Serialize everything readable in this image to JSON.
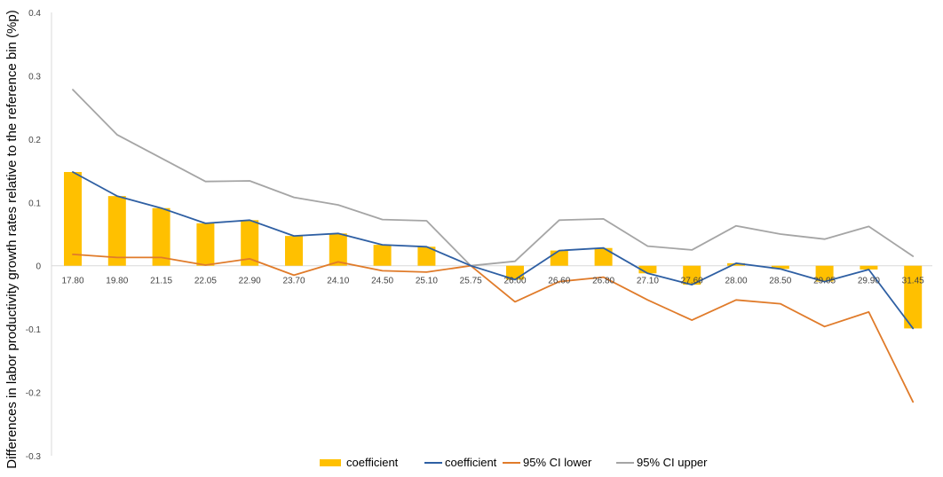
{
  "chart_data": {
    "type": "bar",
    "ylabel": "Differences in labor productivity growth rates relative to the reference bin (%p)",
    "xlabel": "",
    "title": "",
    "ylim": [
      -0.3,
      0.4
    ],
    "yticks": [
      0.4,
      0.3,
      0.2,
      0.1,
      0,
      -0.1,
      -0.2,
      -0.3
    ],
    "ytick_labels": [
      "0.4",
      "0.3",
      "0.2",
      "0.1",
      "0",
      "-0.1",
      "-0.2",
      "-0.3"
    ],
    "grid": false,
    "legend_position": "bottom",
    "categories": [
      "17.80",
      "19.80",
      "21.15",
      "22.05",
      "22.90",
      "23.70",
      "24.10",
      "24.50",
      "25.10",
      "25.75",
      "26.00",
      "26.60",
      "26.80",
      "27.10",
      "27.60",
      "28.00",
      "28.50",
      "29.05",
      "29.90",
      "31.45"
    ],
    "series": [
      {
        "name": "coefficient",
        "type": "bar",
        "color": "#FFC000",
        "values": [
          0.148,
          0.11,
          0.091,
          0.067,
          0.072,
          0.047,
          0.051,
          0.033,
          0.03,
          0.0,
          -0.022,
          0.024,
          0.028,
          -0.012,
          -0.03,
          0.004,
          -0.005,
          -0.025,
          -0.006,
          -0.099
        ]
      },
      {
        "name": "coefficient",
        "type": "line",
        "color": "#2E5FA3",
        "values": [
          0.148,
          0.11,
          0.091,
          0.067,
          0.072,
          0.047,
          0.051,
          0.033,
          0.03,
          0.0,
          -0.022,
          0.024,
          0.028,
          -0.012,
          -0.03,
          0.004,
          -0.005,
          -0.025,
          -0.006,
          -0.099
        ]
      },
      {
        "name": "95% CI lower",
        "type": "line",
        "color": "#E07B2A",
        "values": [
          0.018,
          0.013,
          0.013,
          0.001,
          0.011,
          -0.015,
          0.006,
          -0.008,
          -0.01,
          0.0,
          -0.057,
          -0.025,
          -0.018,
          -0.054,
          -0.086,
          -0.054,
          -0.06,
          -0.096,
          -0.073,
          -0.215
        ]
      },
      {
        "name": "95% CI upper",
        "type": "line",
        "color": "#A5A5A5",
        "values": [
          0.278,
          0.207,
          0.17,
          0.133,
          0.134,
          0.108,
          0.096,
          0.073,
          0.071,
          0.0,
          0.007,
          0.072,
          0.074,
          0.031,
          0.025,
          0.063,
          0.05,
          0.042,
          0.062,
          0.015
        ]
      }
    ]
  }
}
